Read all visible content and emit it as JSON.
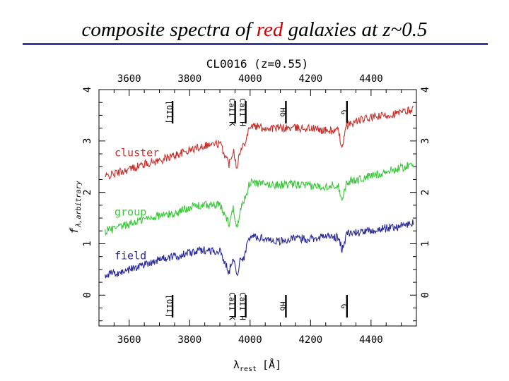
{
  "slide": {
    "title_before": "composite spectra of ",
    "title_highlight": "red",
    "title_after": " galaxies at z~0.5",
    "highlight_color": "#cc0000",
    "rule_color": "#3b3b9e"
  },
  "chart_data": {
    "type": "line",
    "title": "CL0016 (z=0.55)",
    "xlabel": "λrest [Å]",
    "xlabel_main": "λ",
    "xlabel_sub": "rest",
    "xlabel_unit": "[Å]",
    "ylabel": "fλ,arbitrary",
    "ylabel_main": "f",
    "ylabel_sub": "λ,arbitrary",
    "xlim": [
      3500,
      4550
    ],
    "ylim": [
      -0.6,
      4.0
    ],
    "x_ticks": [
      3600,
      3800,
      4000,
      4200,
      4400
    ],
    "y_ticks": [
      0,
      1,
      2,
      3,
      4
    ],
    "features_top": [
      {
        "label": "[OII]",
        "x": 3727
      },
      {
        "label": "CaII K",
        "x": 3934
      },
      {
        "label": "CaII H",
        "x": 3969
      },
      {
        "label": "Hδ",
        "x": 4102
      },
      {
        "label": "G",
        "x": 4304
      }
    ],
    "features_bottom": [
      {
        "label": "[OII]",
        "x": 3727
      },
      {
        "label": "CaII K",
        "x": 3934
      },
      {
        "label": "CaII H",
        "x": 3969
      },
      {
        "label": "Hδ",
        "x": 4102
      },
      {
        "label": "G",
        "x": 4304
      }
    ],
    "series": [
      {
        "name": "cluster",
        "color": "#c8322d",
        "points": [
          [
            3520,
            2.3
          ],
          [
            3560,
            2.38
          ],
          [
            3600,
            2.45
          ],
          [
            3650,
            2.55
          ],
          [
            3700,
            2.62
          ],
          [
            3750,
            2.72
          ],
          [
            3800,
            2.82
          ],
          [
            3850,
            2.92
          ],
          [
            3900,
            2.95
          ],
          [
            3930,
            2.55
          ],
          [
            3945,
            2.85
          ],
          [
            3955,
            2.5
          ],
          [
            3968,
            2.8
          ],
          [
            3980,
            2.95
          ],
          [
            4000,
            3.3
          ],
          [
            4050,
            3.25
          ],
          [
            4100,
            3.25
          ],
          [
            4150,
            3.25
          ],
          [
            4200,
            3.25
          ],
          [
            4250,
            3.2
          ],
          [
            4290,
            3.2
          ],
          [
            4304,
            2.9
          ],
          [
            4320,
            3.3
          ],
          [
            4360,
            3.4
          ],
          [
            4400,
            3.45
          ],
          [
            4450,
            3.5
          ],
          [
            4500,
            3.55
          ],
          [
            4540,
            3.62
          ]
        ]
      },
      {
        "name": "group",
        "color": "#3cc83c",
        "points": [
          [
            3520,
            1.25
          ],
          [
            3560,
            1.3
          ],
          [
            3600,
            1.38
          ],
          [
            3650,
            1.48
          ],
          [
            3700,
            1.55
          ],
          [
            3750,
            1.58
          ],
          [
            3800,
            1.72
          ],
          [
            3850,
            1.75
          ],
          [
            3900,
            1.75
          ],
          [
            3930,
            1.4
          ],
          [
            3945,
            1.7
          ],
          [
            3955,
            1.32
          ],
          [
            3968,
            1.65
          ],
          [
            3980,
            1.85
          ],
          [
            4000,
            2.2
          ],
          [
            4050,
            2.15
          ],
          [
            4100,
            2.15
          ],
          [
            4150,
            2.15
          ],
          [
            4200,
            2.12
          ],
          [
            4250,
            2.12
          ],
          [
            4290,
            2.15
          ],
          [
            4304,
            1.88
          ],
          [
            4320,
            2.2
          ],
          [
            4360,
            2.25
          ],
          [
            4400,
            2.32
          ],
          [
            4450,
            2.4
          ],
          [
            4500,
            2.48
          ],
          [
            4540,
            2.55
          ]
        ]
      },
      {
        "name": "field",
        "color": "#2a2a96",
        "points": [
          [
            3520,
            0.4
          ],
          [
            3560,
            0.42
          ],
          [
            3600,
            0.5
          ],
          [
            3650,
            0.6
          ],
          [
            3700,
            0.7
          ],
          [
            3750,
            0.75
          ],
          [
            3800,
            0.82
          ],
          [
            3850,
            0.88
          ],
          [
            3900,
            0.85
          ],
          [
            3930,
            0.45
          ],
          [
            3945,
            0.78
          ],
          [
            3955,
            0.35
          ],
          [
            3968,
            0.7
          ],
          [
            3980,
            0.75
          ],
          [
            4000,
            1.15
          ],
          [
            4050,
            1.1
          ],
          [
            4100,
            1.05
          ],
          [
            4150,
            1.1
          ],
          [
            4200,
            1.1
          ],
          [
            4250,
            1.15
          ],
          [
            4290,
            1.12
          ],
          [
            4304,
            0.9
          ],
          [
            4320,
            1.2
          ],
          [
            4360,
            1.22
          ],
          [
            4400,
            1.25
          ],
          [
            4450,
            1.3
          ],
          [
            4500,
            1.35
          ],
          [
            4540,
            1.4
          ]
        ]
      }
    ],
    "legend": [
      {
        "label": "cluster",
        "color": "#c8322d"
      },
      {
        "label": "group",
        "color": "#3cc83c"
      },
      {
        "label": "field",
        "color": "#2a2a96"
      }
    ]
  }
}
